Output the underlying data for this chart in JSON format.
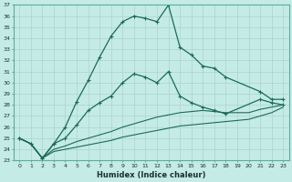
{
  "xlabel": "Humidex (Indice chaleur)",
  "ylabel": "",
  "bg_color": "#c5ebe6",
  "grid_color": "#aad4ce",
  "line_color": "#1a6b5a",
  "xlim": [
    -0.5,
    23.5
  ],
  "ylim": [
    23,
    37
  ],
  "xticks": [
    0,
    1,
    2,
    3,
    4,
    5,
    6,
    7,
    8,
    9,
    10,
    11,
    12,
    13,
    14,
    15,
    16,
    17,
    18,
    19,
    20,
    21,
    22,
    23
  ],
  "yticks": [
    23,
    24,
    25,
    26,
    27,
    28,
    29,
    30,
    31,
    32,
    33,
    34,
    35,
    36,
    37
  ],
  "series1_x": [
    0,
    1,
    2,
    3,
    4,
    5,
    6,
    7,
    8,
    9,
    10,
    11,
    12,
    13,
    14,
    15,
    16,
    17,
    18,
    21,
    22,
    23
  ],
  "series1_y": [
    25.0,
    24.5,
    23.2,
    24.5,
    26.0,
    28.3,
    30.2,
    32.3,
    34.2,
    35.5,
    36.0,
    35.8,
    35.5,
    37.0,
    33.2,
    32.5,
    31.5,
    31.3,
    30.5,
    29.2,
    28.5,
    28.5
  ],
  "series2_x": [
    0,
    1,
    2,
    3,
    4,
    5,
    6,
    7,
    8,
    9,
    10,
    11,
    12,
    13,
    14,
    15,
    16,
    17,
    18,
    21,
    22,
    23
  ],
  "series2_y": [
    25.0,
    24.5,
    23.2,
    24.5,
    25.0,
    26.2,
    27.5,
    28.2,
    28.8,
    30.0,
    30.8,
    30.5,
    30.0,
    31.0,
    28.8,
    28.2,
    27.8,
    27.5,
    27.2,
    28.5,
    28.2,
    28.0
  ],
  "series3_x": [
    0,
    1,
    2,
    3,
    4,
    5,
    6,
    7,
    8,
    9,
    10,
    11,
    12,
    13,
    14,
    15,
    16,
    17,
    18,
    19,
    20,
    21,
    22,
    23
  ],
  "series3_y": [
    25.0,
    24.5,
    23.2,
    24.0,
    24.3,
    24.7,
    25.0,
    25.3,
    25.6,
    26.0,
    26.3,
    26.6,
    26.9,
    27.1,
    27.3,
    27.4,
    27.5,
    27.4,
    27.3,
    27.3,
    27.3,
    27.6,
    27.8,
    28.0
  ],
  "series4_x": [
    0,
    1,
    2,
    3,
    4,
    5,
    6,
    7,
    8,
    9,
    10,
    11,
    12,
    13,
    14,
    15,
    16,
    17,
    18,
    19,
    20,
    21,
    22,
    23
  ],
  "series4_y": [
    25.0,
    24.5,
    23.2,
    23.8,
    24.0,
    24.2,
    24.4,
    24.6,
    24.8,
    25.1,
    25.3,
    25.5,
    25.7,
    25.9,
    26.1,
    26.2,
    26.3,
    26.4,
    26.5,
    26.6,
    26.7,
    27.0,
    27.3,
    27.8
  ]
}
